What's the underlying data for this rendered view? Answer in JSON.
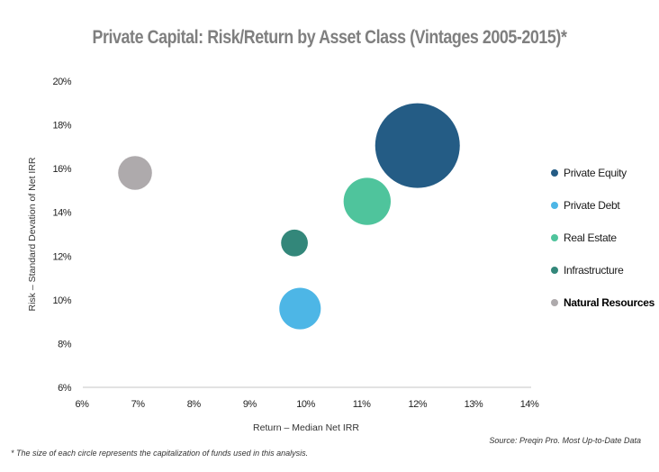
{
  "chart_data": {
    "type": "bubble",
    "title": "Private Capital: Risk/Return by Asset Class (Vintages 2005-2015)*",
    "xlabel": "Return – Median Net IRR",
    "ylabel": "Risk – Standard Devation of Net IRR",
    "xlim": [
      6,
      14
    ],
    "ylim": [
      6,
      20
    ],
    "xticks": [
      "6%",
      "7%",
      "8%",
      "9%",
      "10%",
      "11%",
      "12%",
      "13%",
      "14%"
    ],
    "yticks": [
      "6%",
      "8%",
      "10%",
      "12%",
      "14%",
      "16%",
      "18%",
      "20%"
    ],
    "grid": false,
    "legend_position": "right",
    "series": [
      {
        "name": "Private Equity",
        "x": 12.0,
        "y": 17.05,
        "size": 100,
        "color": "#245c85"
      },
      {
        "name": "Private Debt",
        "x": 9.9,
        "y": 9.6,
        "size": 24,
        "color": "#4db6e6"
      },
      {
        "name": "Real Estate",
        "x": 11.1,
        "y": 14.5,
        "size": 31,
        "color": "#4fc49c"
      },
      {
        "name": "Infrastructure",
        "x": 9.8,
        "y": 12.6,
        "size": 10,
        "color": "#33877a"
      },
      {
        "name": "Natural Resources",
        "x": 6.95,
        "y": 15.8,
        "size": 16,
        "color": "#aeaaac"
      }
    ],
    "source": "Source: Preqin Pro. Most Up-to-Date Data",
    "footnote": "* The size of each circle represents the capitalization of funds used in this analysis."
  }
}
